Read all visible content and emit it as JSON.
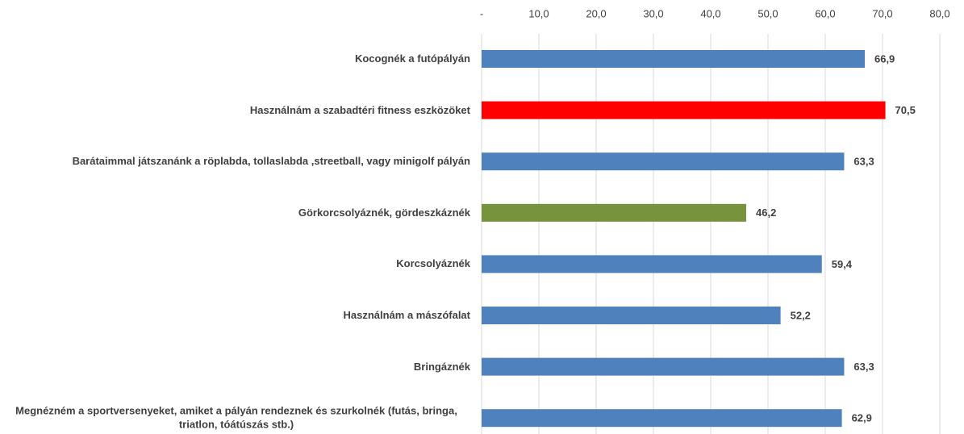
{
  "chart_data": {
    "type": "bar",
    "orientation": "horizontal",
    "categories": [
      "Kocognék a futópályán",
      "Használnám a szabadtéri fitness eszközöket",
      "Barátaimmal játszanánk a röplabda, tollaslabda ,streetball, vagy minigolf pályán",
      "Görkorcsolyáznék, gördeszkáznék",
      "Korcsolyáznék",
      "Használnám a mászófalat",
      "Bringáznék",
      "Megnézném a sportversenyeket, amiket a pályán rendeznek  és szurkolnék (futás, bringa, triatlon, tóátúszás stb.)"
    ],
    "values": [
      66.9,
      70.5,
      63.3,
      46.2,
      59.4,
      52.2,
      63.3,
      62.9
    ],
    "value_labels": [
      "66,9",
      "70,5",
      "63,3",
      "46,2",
      "59,4",
      "52,2",
      "63,3",
      "62,9"
    ],
    "colors": [
      "#4f81bd",
      "#ff0000",
      "#4f81bd",
      "#77933c",
      "#4f81bd",
      "#4f81bd",
      "#4f81bd",
      "#4f81bd"
    ],
    "xlim": [
      0,
      80
    ],
    "xticks": [
      {
        "value": 0,
        "label": "-"
      },
      {
        "value": 10,
        "label": "10,0"
      },
      {
        "value": 20,
        "label": "20,0"
      },
      {
        "value": 30,
        "label": "30,0"
      },
      {
        "value": 40,
        "label": "40,0"
      },
      {
        "value": 50,
        "label": "50,0"
      },
      {
        "value": 60,
        "label": "60,0"
      },
      {
        "value": 70,
        "label": "70,0"
      },
      {
        "value": 80,
        "label": "80,0"
      }
    ],
    "grid": true
  }
}
